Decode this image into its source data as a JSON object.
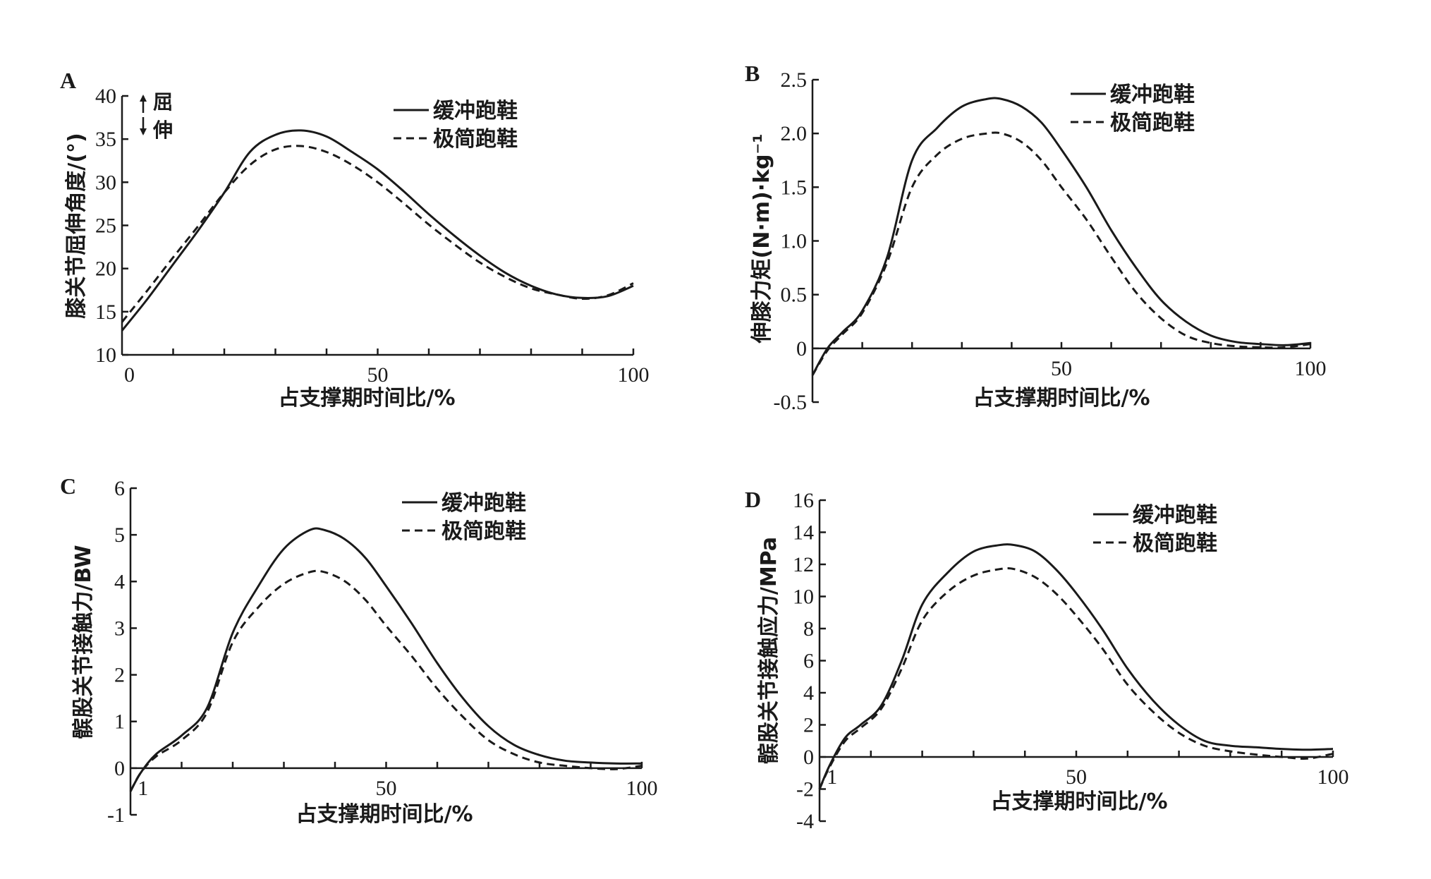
{
  "chart_data": [
    {
      "panel": "A",
      "type": "line",
      "xlabel": "占支撑期时间比/%",
      "ylabel": "膝关节屈伸角度/(°)",
      "xlim": [
        0,
        100
      ],
      "ylim": [
        10,
        40
      ],
      "xticks": [
        0,
        50,
        100
      ],
      "xtick_labels": [
        "0",
        "50",
        "100"
      ],
      "yticks": [
        10,
        15,
        20,
        25,
        30,
        35,
        40
      ],
      "ytick_labels": [
        "10",
        "15",
        "20",
        "25",
        "30",
        "35",
        "40"
      ],
      "grid": false,
      "legend_position": "top-right",
      "annotations": [
        "屈",
        "伸"
      ],
      "series": [
        {
          "name": "缓冲跑鞋",
          "style": "solid",
          "x": [
            0,
            5,
            10,
            15,
            20,
            25,
            30,
            35,
            40,
            45,
            50,
            55,
            60,
            65,
            70,
            75,
            80,
            85,
            90,
            95,
            100
          ],
          "y": [
            12.8,
            16.5,
            20.5,
            24.5,
            28.8,
            33.5,
            35.5,
            36.0,
            35.3,
            33.5,
            31.5,
            29.0,
            26.3,
            23.8,
            21.5,
            19.5,
            18.0,
            17.0,
            16.6,
            16.8,
            18.0
          ]
        },
        {
          "name": "极简跑鞋",
          "style": "dashed",
          "x": [
            0,
            5,
            10,
            15,
            20,
            25,
            30,
            35,
            40,
            45,
            50,
            55,
            60,
            65,
            70,
            75,
            80,
            85,
            90,
            95,
            100
          ],
          "y": [
            13.8,
            17.5,
            21.3,
            25.0,
            28.8,
            32.0,
            33.8,
            34.2,
            33.5,
            32.0,
            30.0,
            27.6,
            25.1,
            22.8,
            20.7,
            19.0,
            17.7,
            17.0,
            16.5,
            16.9,
            18.3
          ]
        }
      ]
    },
    {
      "panel": "B",
      "type": "line",
      "xlabel": "占支撑期时间比/%",
      "ylabel": "伸膝力矩(N·m)·kg⁻¹",
      "xlim": [
        0,
        100
      ],
      "ylim": [
        -0.5,
        2.5
      ],
      "xticks": [
        50,
        100
      ],
      "xtick_labels": [
        "50",
        "100"
      ],
      "yticks": [
        -0.5,
        0,
        0.5,
        1.0,
        1.5,
        2.0,
        2.5
      ],
      "ytick_labels": [
        "-0.5",
        "0",
        "0.5",
        "1.0",
        "1.5",
        "2.0",
        "2.5"
      ],
      "grid": false,
      "legend_position": "top-right",
      "series": [
        {
          "name": "缓冲跑鞋",
          "style": "solid",
          "x": [
            0,
            3,
            6,
            10,
            15,
            20,
            25,
            30,
            35,
            38,
            42,
            46,
            50,
            55,
            60,
            65,
            70,
            75,
            80,
            85,
            90,
            95,
            100
          ],
          "y": [
            -0.25,
            0,
            0.15,
            0.35,
            0.85,
            1.75,
            2.05,
            2.25,
            2.32,
            2.32,
            2.25,
            2.1,
            1.85,
            1.5,
            1.1,
            0.75,
            0.45,
            0.25,
            0.12,
            0.06,
            0.04,
            0.03,
            0.05
          ]
        },
        {
          "name": "极简跑鞋",
          "style": "dashed",
          "x": [
            0,
            3,
            6,
            10,
            15,
            20,
            25,
            30,
            35,
            38,
            42,
            46,
            50,
            55,
            60,
            65,
            70,
            75,
            80,
            85,
            90,
            95,
            100
          ],
          "y": [
            -0.25,
            -0.02,
            0.13,
            0.33,
            0.8,
            1.5,
            1.8,
            1.95,
            2.0,
            2.0,
            1.92,
            1.75,
            1.5,
            1.2,
            0.85,
            0.52,
            0.28,
            0.12,
            0.05,
            0.02,
            0.01,
            0.01,
            0.04
          ]
        }
      ]
    },
    {
      "panel": "C",
      "type": "line",
      "xlabel": "占支撑期时间比/%",
      "ylabel": "髌股关节接触力/BW",
      "xlim": [
        0,
        100
      ],
      "ylim": [
        -1,
        6
      ],
      "xticks": [
        1,
        50,
        100
      ],
      "xtick_labels": [
        "1",
        "50",
        "100"
      ],
      "yticks": [
        -1,
        0,
        1,
        2,
        3,
        4,
        5,
        6
      ],
      "ytick_labels": [
        "-1",
        "0",
        "1",
        "2",
        "3",
        "4",
        "5",
        "6"
      ],
      "grid": false,
      "legend_position": "top-right",
      "series": [
        {
          "name": "缓冲跑鞋",
          "style": "solid",
          "x": [
            0,
            2,
            5,
            10,
            15,
            20,
            25,
            30,
            35,
            38,
            42,
            46,
            50,
            55,
            60,
            65,
            70,
            75,
            80,
            85,
            90,
            95,
            100
          ],
          "y": [
            -0.5,
            -0.1,
            0.3,
            0.7,
            1.3,
            2.9,
            3.9,
            4.7,
            5.1,
            5.1,
            4.9,
            4.5,
            3.9,
            3.1,
            2.25,
            1.5,
            0.9,
            0.5,
            0.28,
            0.16,
            0.12,
            0.1,
            0.1
          ]
        },
        {
          "name": "极简跑鞋",
          "style": "dashed",
          "x": [
            0,
            2,
            5,
            10,
            15,
            20,
            25,
            30,
            35,
            38,
            42,
            46,
            50,
            55,
            60,
            65,
            70,
            75,
            80,
            85,
            90,
            95,
            100
          ],
          "y": [
            -0.5,
            -0.1,
            0.25,
            0.6,
            1.2,
            2.7,
            3.45,
            3.95,
            4.2,
            4.2,
            4.0,
            3.6,
            3.05,
            2.4,
            1.7,
            1.1,
            0.6,
            0.3,
            0.12,
            0.05,
            0.0,
            -0.02,
            0.05
          ]
        }
      ]
    },
    {
      "panel": "D",
      "type": "line",
      "xlabel": "占支撑期时间比/%",
      "ylabel": "髌股关节接触应力/MPa",
      "xlim": [
        0,
        100
      ],
      "ylim": [
        -4,
        16
      ],
      "xticks": [
        1,
        50,
        100
      ],
      "xtick_labels": [
        "1",
        "50",
        "100"
      ],
      "yticks": [
        -4,
        -2,
        0,
        2,
        4,
        6,
        8,
        10,
        12,
        14,
        16
      ],
      "ytick_labels": [
        "-4",
        "-2",
        "0",
        "2",
        "4",
        "6",
        "8",
        "10",
        "12",
        "14",
        "16"
      ],
      "grid": false,
      "legend_position": "top-right",
      "series": [
        {
          "name": "缓冲跑鞋",
          "style": "solid",
          "x": [
            0,
            2,
            5,
            8,
            12,
            16,
            20,
            25,
            30,
            35,
            38,
            42,
            46,
            50,
            55,
            60,
            65,
            70,
            75,
            80,
            85,
            90,
            95,
            100
          ],
          "y": [
            -2.0,
            -0.5,
            1.2,
            2.0,
            3.2,
            6.0,
            9.5,
            11.5,
            12.8,
            13.2,
            13.2,
            12.8,
            11.7,
            10.2,
            8.0,
            5.5,
            3.5,
            2.0,
            1.0,
            0.7,
            0.6,
            0.5,
            0.45,
            0.5
          ]
        },
        {
          "name": "极简跑鞋",
          "style": "dashed",
          "x": [
            0,
            2,
            5,
            8,
            12,
            16,
            20,
            25,
            30,
            35,
            38,
            42,
            46,
            50,
            55,
            60,
            65,
            70,
            75,
            80,
            85,
            90,
            95,
            100
          ],
          "y": [
            -2.0,
            -0.6,
            1.0,
            1.8,
            3.0,
            5.5,
            8.5,
            10.3,
            11.3,
            11.7,
            11.7,
            11.2,
            10.2,
            8.8,
            6.8,
            4.5,
            2.8,
            1.5,
            0.7,
            0.35,
            0.15,
            0.0,
            -0.1,
            0.2
          ]
        }
      ]
    }
  ]
}
